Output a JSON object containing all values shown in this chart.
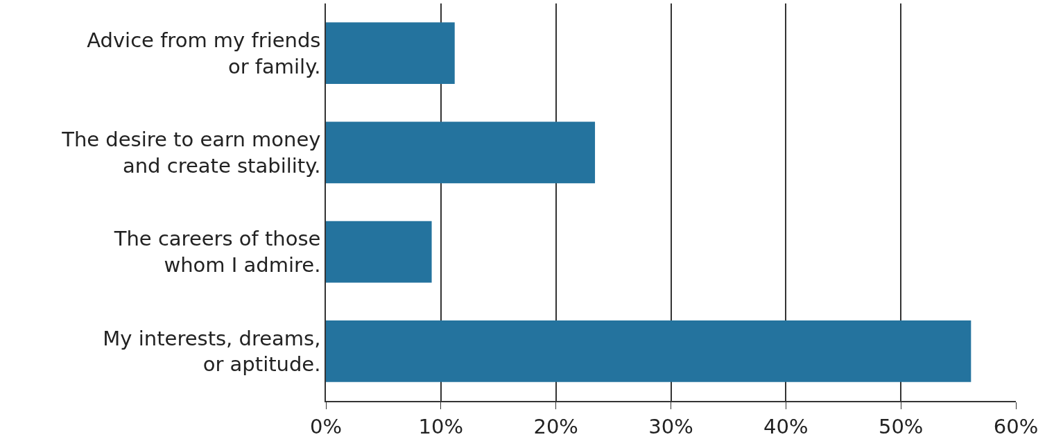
{
  "chart_data": {
    "type": "bar",
    "orientation": "horizontal",
    "categories": [
      "Advice from my friends\nor family.",
      "The desire to earn money\nand create stability.",
      "The careers of those\nwhom I admire.",
      "My interests, dreams,\nor aptitude."
    ],
    "values": [
      11.2,
      23.4,
      9.2,
      56.1
    ],
    "color": "#24739e",
    "xlim": [
      0,
      60
    ],
    "xticks": [
      {
        "value": 0,
        "label": "0%"
      },
      {
        "value": 10,
        "label": "10%"
      },
      {
        "value": 20,
        "label": "20%"
      },
      {
        "value": 30,
        "label": "30%"
      },
      {
        "value": 40,
        "label": "40%"
      },
      {
        "value": 50,
        "label": "50%"
      },
      {
        "value": 60,
        "label": "60%"
      }
    ],
    "grid": "x"
  }
}
